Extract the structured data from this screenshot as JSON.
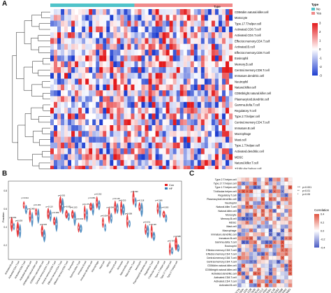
{
  "panels": {
    "a": {
      "letter": "A"
    },
    "b": {
      "letter": "B"
    },
    "c": {
      "letter": "C"
    }
  },
  "heatmap": {
    "type_label": "Type",
    "legend": {
      "type_title": "Type",
      "type_items": [
        {
          "label": "No",
          "color": "#4fc3c9"
        },
        {
          "label": "Yes",
          "color": "#f08a8a"
        }
      ],
      "scale_ticks": [
        "3",
        "2",
        "1",
        "0",
        "-1",
        "-2",
        "-3"
      ],
      "color_high": "#e31a1c",
      "color_mid": "#ffffff",
      "color_low": "#1f3fd0"
    },
    "rows": [
      "CD56dim.natural.killer.cell",
      "Monocyte",
      "Type.17.T.helper.cell",
      "Activated.CD8.T.cell",
      "Activated.CD4.T.cell",
      "Effector.memory.CD4.T.cell",
      "Activated.B.cell",
      "Effector.memory.CD8.T.cell",
      "Eosinophil",
      "Memory.B.cell",
      "Central.memory.CD8.T.cell",
      "Immature.dendritic.cell",
      "Neutrophil",
      "Natural.killer.cell",
      "CD56bright.natural.killer.cell",
      "Plasmacytoid.dendritic.cell",
      "Gamma.delta.T.cell",
      "Regulatory.T.cell",
      "Type.2.T.helper.cell",
      "Central.memory.CD4.T.cell",
      "Immature.B.cell",
      "Macrophage",
      "Mast.cell",
      "Type.1.T.helper.cell",
      "Activated.dendritic.cell",
      "MDSC",
      "Natural.killer.T.cell",
      "T.follicular.helper.cell"
    ]
  },
  "violin": {
    "ylabel": "Fraction",
    "legend": [
      {
        "label": "Con",
        "color": "#e41a1c"
      },
      {
        "label": "HF",
        "color": "#377eb8"
      }
    ],
    "categories": [
      "Activated.B.cell",
      "Activated.CD4.T.cell",
      "Activated.CD8.T.cell",
      "Activated.dendritic.cell",
      "CD56bright.natural.killer.cell",
      "CD56dim.natural.killer.cell",
      "Central.memory.CD4.T.cell",
      "Central.memory.CD8.T.cell",
      "Effector.memory.CD4.T.cell",
      "Effector.memory.CD8.T.cell",
      "Eosinophil",
      "Gamma.delta.T.cell",
      "Immature.B.cell",
      "Immature.dendritic.cell",
      "Macrophage",
      "Mast.cell",
      "MDSC",
      "Memory.B.cell",
      "Monocyte",
      "Natural.killer.cell",
      "Natural.killer.T.cell",
      "Neutrophil",
      "Plasmacytoid.dendritic.cell",
      "Regulatory.T.cell",
      "T.follicular.helper.cell",
      "Type.1.T.helper.cell",
      "Type.17.T.helper.cell",
      "Type.2.T.helper.cell"
    ],
    "pvalues": [
      "p=0.091",
      "p=0.059",
      "p=0.014",
      "p=0.068",
      "p=0.183",
      "p=0.045",
      "p=0.110",
      "p=0.089",
      "p=0.030",
      "p=0.091",
      "p=0.193",
      "p=0.003",
      "p=0.179",
      "p=0.051",
      "p=0.052",
      "p=0.054",
      "p=0.094",
      "p=0.146",
      "p=0.020",
      "p=0.098",
      "p=0.090",
      "p=0.118",
      "p=0.031",
      "p=0.120",
      "p=0.066",
      "p=0.080",
      "p=0.707",
      "p=0.588"
    ]
  },
  "corr": {
    "rows": [
      "Type.2.T.helper.cell",
      "Type.17.T.helper.cell",
      "Type.1.T.helper.cell",
      "T.follicular.helper.cell",
      "Regulatory.T.cell",
      "Plasmacytoid.dendritic.cell",
      "Neutrophil",
      "Natural.killer.T.cell",
      "Natural.killer.cell",
      "Monocyte",
      "Memory.B.cell",
      "MDSC",
      "Mast.cell",
      "Macrophage",
      "Immature.dendritic.cell",
      "Immature.B.cell",
      "Gamma.delta.T.cell",
      "Eosinophil",
      "Effector.memory.CD8.T.cell",
      "Effector.memory.CD4.T.cell",
      "Central.memory.CD8.T.cell",
      "Central.memory.CD4.T.cell",
      "CD56dim.natural.killer.cell",
      "CD56bright.natural.killer.cell",
      "Activated.dendritic.cell",
      "Activated.CD8.T.cell",
      "Activated.CD4.T.cell",
      "Activated.B.cell"
    ],
    "cols": [
      "ACTB",
      "ALDOA",
      "CD4",
      "CD8",
      "CD36",
      "CDC42",
      "CCL2",
      "GAPDH",
      "HMGB1",
      "IL1B",
      "ITGB2",
      "MYD88",
      "PTPRC",
      "PPARG"
    ],
    "sig_legend": [
      "p<0.001",
      "p<0.01",
      "p<0.05"
    ],
    "scale_title": "Correlation",
    "scale_ticks": [
      "0.4",
      "0.2",
      "0.0",
      "-0.2",
      "-0.4"
    ]
  }
}
